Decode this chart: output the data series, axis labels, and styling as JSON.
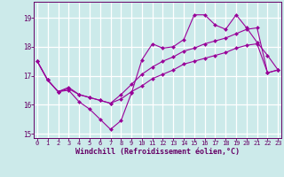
{
  "xlabel": "Windchill (Refroidissement éolien,°C)",
  "background_color": "#cceaea",
  "grid_color": "#ffffff",
  "line_color": "#990099",
  "x_values": [
    0,
    1,
    2,
    3,
    4,
    5,
    6,
    7,
    8,
    9,
    10,
    11,
    12,
    13,
    14,
    15,
    16,
    17,
    18,
    19,
    20,
    21,
    22,
    23
  ],
  "series1": [
    17.5,
    16.85,
    16.45,
    16.5,
    16.1,
    15.85,
    15.5,
    15.15,
    15.45,
    16.4,
    17.55,
    18.1,
    17.95,
    18.0,
    18.25,
    19.1,
    19.1,
    18.75,
    18.6,
    19.1,
    18.65,
    18.15,
    17.7,
    17.2
  ],
  "series2": [
    17.5,
    16.85,
    16.45,
    16.6,
    16.35,
    16.25,
    16.15,
    16.05,
    16.35,
    16.7,
    17.05,
    17.3,
    17.5,
    17.65,
    17.85,
    17.95,
    18.1,
    18.2,
    18.3,
    18.45,
    18.6,
    18.65,
    17.1,
    17.2
  ],
  "series3": [
    17.5,
    16.85,
    16.45,
    16.55,
    16.35,
    16.25,
    16.15,
    16.05,
    16.2,
    16.45,
    16.65,
    16.9,
    17.05,
    17.2,
    17.4,
    17.5,
    17.6,
    17.7,
    17.8,
    17.95,
    18.05,
    18.1,
    17.1,
    17.2
  ],
  "ylim": [
    14.85,
    19.55
  ],
  "yticks": [
    15,
    16,
    17,
    18,
    19
  ],
  "xlim": [
    -0.3,
    23.3
  ],
  "xticks": [
    0,
    1,
    2,
    3,
    4,
    5,
    6,
    7,
    8,
    9,
    10,
    11,
    12,
    13,
    14,
    15,
    16,
    17,
    18,
    19,
    20,
    21,
    22,
    23
  ],
  "tick_fontsize": 5.0,
  "xlabel_fontsize": 6.0
}
